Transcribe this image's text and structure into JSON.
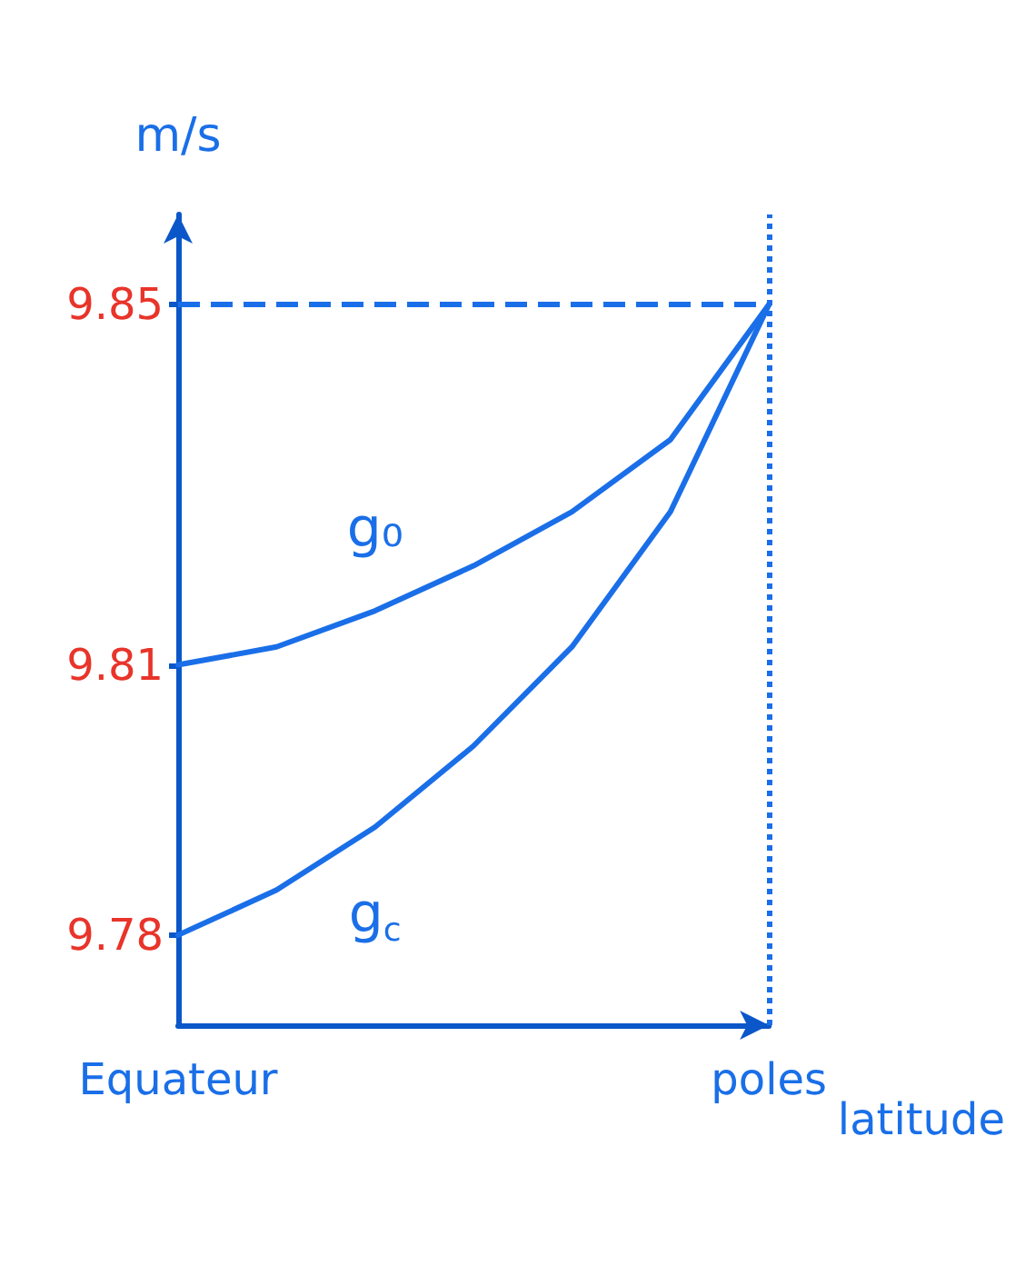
{
  "chart_data": {
    "type": "line",
    "ylabel": "m/s",
    "xlabel": "latitude",
    "categories": [
      "Equateur",
      null,
      null,
      null,
      null,
      null,
      "poles"
    ],
    "series": [
      {
        "name": "g₀",
        "color": "#1a6fe8",
        "values": [
          9.81,
          9.812,
          9.816,
          9.821,
          9.827,
          9.835,
          9.85
        ]
      },
      {
        "name": "g$_{c}$",
        "color": "#1a6fe8",
        "values": [
          9.78,
          9.785,
          9.792,
          9.801,
          9.812,
          9.827,
          9.85
        ]
      }
    ],
    "ylim": [
      9.77,
      9.86
    ],
    "yticks": [
      9.78,
      9.81,
      9.85
    ],
    "ref_lines": [
      {
        "axis": "y",
        "value": 9.85,
        "line_style": "dashed",
        "color": "#1a6fe8"
      },
      {
        "axis": "x",
        "value": "poles",
        "line_style": "dotted",
        "color": "#1a6fe8"
      }
    ],
    "grid": false,
    "legend": false,
    "marker": "none",
    "line_style": "solid"
  }
}
